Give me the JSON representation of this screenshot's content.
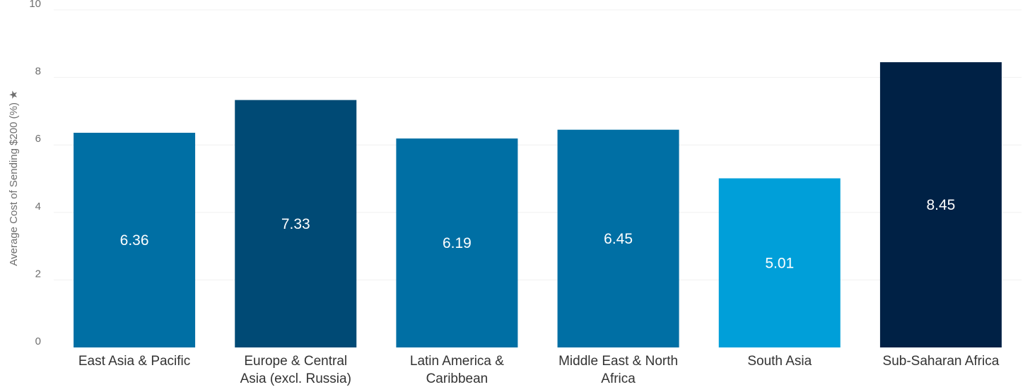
{
  "chart_data": {
    "type": "bar",
    "categories": [
      "East Asia & Pacific",
      "Europe & Central Asia (excl. Russia)",
      "Latin America & Caribbean",
      "Middle East & North Africa",
      "South Asia",
      "Sub-Saharan Africa"
    ],
    "category_lines": [
      [
        "East Asia & Pacific"
      ],
      [
        "Europe & Central",
        "Asia (excl. Russia)"
      ],
      [
        "Latin America &",
        "Caribbean"
      ],
      [
        "Middle East & North",
        "Africa"
      ],
      [
        "South Asia"
      ],
      [
        "Sub-Saharan Africa"
      ]
    ],
    "values": [
      6.36,
      7.33,
      6.19,
      6.45,
      5.01,
      8.45
    ],
    "data_labels": [
      "6.36",
      "7.33",
      "6.19",
      "6.45",
      "5.01",
      "8.45"
    ],
    "colors": [
      "#006fa4",
      "#004a75",
      "#006fa4",
      "#006fa4",
      "#009fd9",
      "#002145"
    ],
    "ylabel": "Average Cost of Sending $200 (%) ★",
    "xlabel": "",
    "ylim": [
      0,
      10
    ],
    "yticks": [
      0,
      2,
      4,
      6,
      8,
      10
    ],
    "grid": true,
    "legend": "none"
  }
}
